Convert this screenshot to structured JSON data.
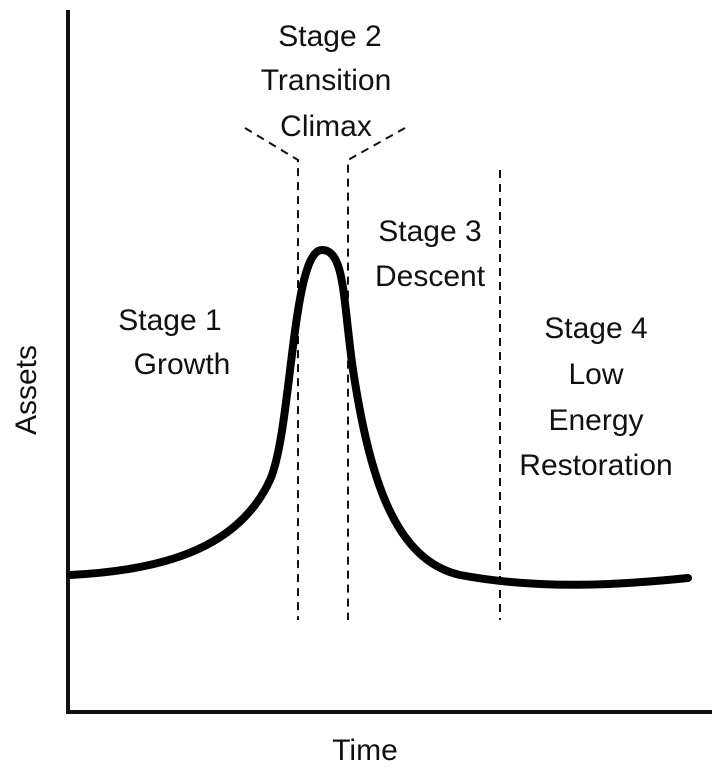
{
  "axes": {
    "y_label": "Assets",
    "x_label": "Time"
  },
  "stages": [
    {
      "lines": [
        "Stage 1",
        "Growth"
      ]
    },
    {
      "lines": [
        "Stage 2",
        "Transition",
        "Climax"
      ]
    },
    {
      "lines": [
        "Stage 3",
        "Descent"
      ]
    },
    {
      "lines": [
        "Stage 4",
        "Low",
        "Energy",
        "Restoration"
      ]
    }
  ]
}
